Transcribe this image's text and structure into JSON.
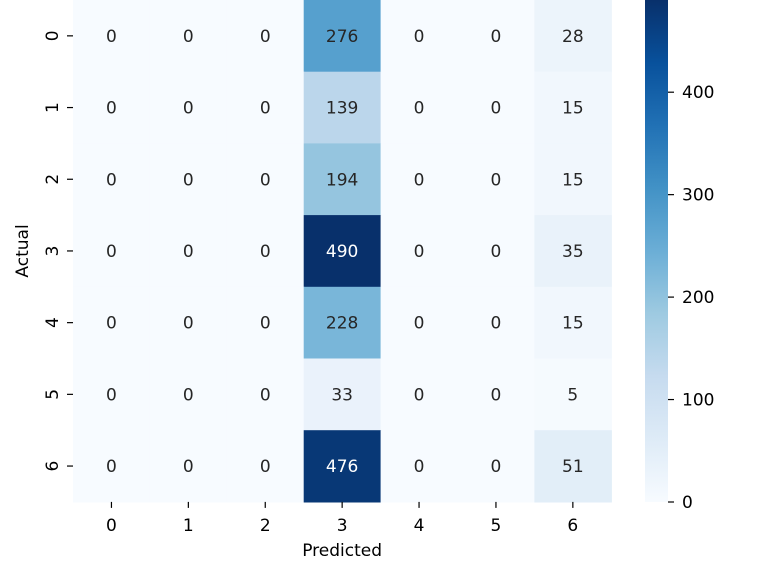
{
  "chart_data": {
    "type": "heatmap",
    "title": "",
    "xlabel": "Predicted",
    "ylabel": "Actual",
    "x_categories": [
      "0",
      "1",
      "2",
      "3",
      "4",
      "5",
      "6"
    ],
    "y_categories": [
      "0",
      "1",
      "2",
      "3",
      "4",
      "5",
      "6"
    ],
    "values": [
      [
        0,
        0,
        0,
        276,
        0,
        0,
        28
      ],
      [
        0,
        0,
        0,
        139,
        0,
        0,
        15
      ],
      [
        0,
        0,
        0,
        194,
        0,
        0,
        15
      ],
      [
        0,
        0,
        0,
        490,
        0,
        0,
        35
      ],
      [
        0,
        0,
        0,
        228,
        0,
        0,
        15
      ],
      [
        0,
        0,
        0,
        33,
        0,
        0,
        5
      ],
      [
        0,
        0,
        0,
        476,
        0,
        0,
        51
      ]
    ],
    "colormap": "Blues",
    "color_range": [
      0,
      490
    ],
    "colorbar_ticks": [
      0,
      100,
      200,
      300,
      400
    ],
    "annotated": true
  }
}
